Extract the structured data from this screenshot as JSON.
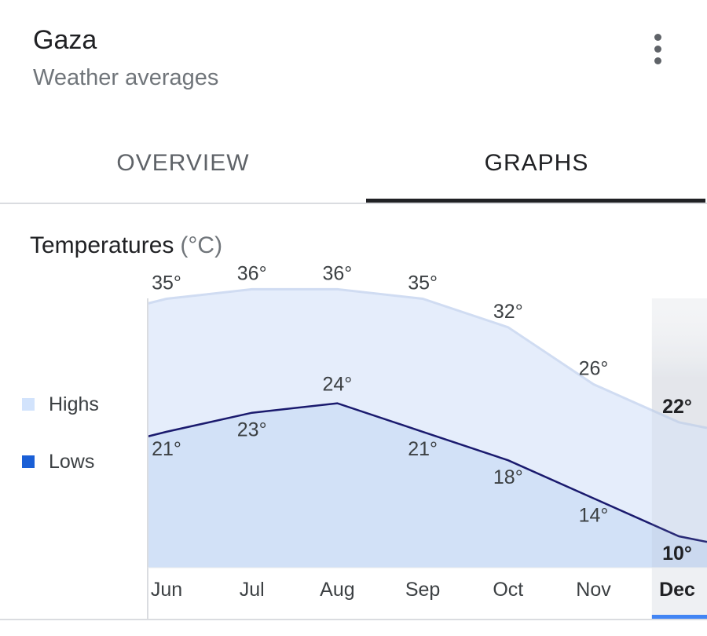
{
  "header": {
    "title": "Gaza",
    "subtitle": "Weather averages",
    "menu_icon": "more-vert-icon"
  },
  "tabs": [
    {
      "label": "OVERVIEW",
      "selected": false
    },
    {
      "label": "GRAPHS",
      "selected": true
    }
  ],
  "section": {
    "title": "Temperatures",
    "unit": "(°C)"
  },
  "legend": [
    {
      "label": "Highs",
      "color": "#d2e3fc"
    },
    {
      "label": "Lows",
      "color": "#1a5fd6"
    }
  ],
  "chart_data": {
    "type": "area",
    "categories": [
      "Jun",
      "Jul",
      "Aug",
      "Sep",
      "Oct",
      "Nov",
      "Dec"
    ],
    "series": [
      {
        "name": "Highs",
        "values": [
          35,
          36,
          36,
          35,
          32,
          26,
          22
        ],
        "labels": [
          "35°",
          "36°",
          "36°",
          "35°",
          "32°",
          "26°",
          "22°"
        ],
        "fill": "#e5edfb",
        "line": "#d0dcf2"
      },
      {
        "name": "Lows",
        "values": [
          21,
          23,
          24,
          21,
          18,
          14,
          10
        ],
        "labels": [
          "21°",
          "23°",
          "24°",
          "21°",
          "18°",
          "14°",
          "10°"
        ],
        "fill": "#d2e1f7",
        "line": "#1a1a6e"
      }
    ],
    "selected_category": "Dec",
    "selected_color": "#4285f4"
  }
}
